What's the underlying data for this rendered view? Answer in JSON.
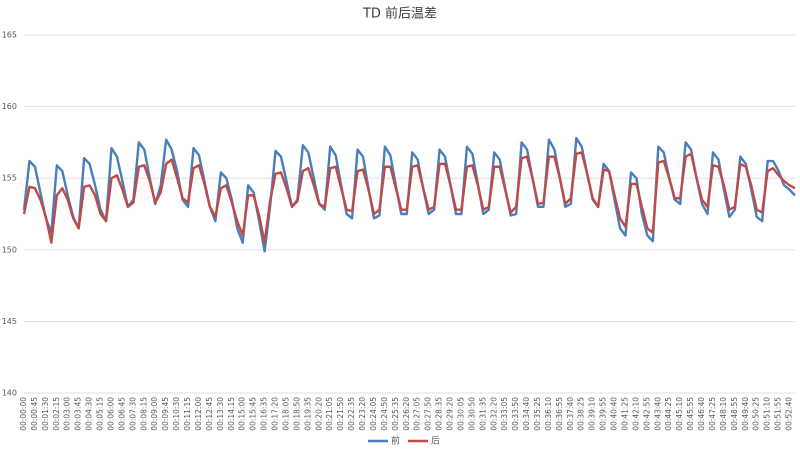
{
  "chart_data": {
    "type": "line",
    "title": "TD 前后温差",
    "categories": [
      "00:00:00",
      null,
      "00:00:45",
      null,
      "00:01:30",
      null,
      "00:02:15",
      null,
      "00:03:00",
      null,
      "00:03:45",
      null,
      "00:04:30",
      null,
      "00:05:15",
      null,
      "00:06:00",
      null,
      "00:06:45",
      null,
      "00:07:30",
      null,
      "00:08:15",
      null,
      "00:09:00",
      null,
      "00:09:45",
      null,
      "00:10:30",
      null,
      "00:11:15",
      null,
      "00:12:00",
      null,
      "00:12:45",
      null,
      "00:13:30",
      null,
      "00:14:15",
      null,
      "00:15:00",
      null,
      "00:15:45",
      null,
      "00:16:35",
      null,
      "00:17:20",
      null,
      "00:18:05",
      null,
      "00:18:50",
      null,
      "00:19:35",
      null,
      "00:20:20",
      null,
      "00:21:05",
      null,
      "00:21:50",
      null,
      "00:22:35",
      null,
      "00:23:20",
      null,
      "00:24:05",
      null,
      "00:24:50",
      null,
      "00:25:35",
      null,
      "00:26:20",
      null,
      "00:27:05",
      null,
      "00:27:50",
      null,
      "00:28:35",
      null,
      "00:29:20",
      null,
      "00:30:05",
      null,
      "00:30:50",
      null,
      "00:31:35",
      null,
      "00:32:20",
      null,
      "00:33:05",
      null,
      "00:33:50",
      null,
      "00:34:40",
      null,
      "00:35:25",
      null,
      "00:36:10",
      null,
      "00:36:55",
      null,
      "00:37:40",
      null,
      "00:38:25",
      null,
      "00:39:10",
      null,
      "00:39:55",
      null,
      "00:40:40",
      null,
      "00:41:25",
      null,
      "00:42:10",
      null,
      "00:42:55",
      null,
      "00:43:40",
      null,
      "00:44:25",
      null,
      "00:45:10",
      null,
      "00:45:55",
      null,
      "00:46:40",
      null,
      "00:47:25",
      null,
      "00:48:10",
      null,
      "00:48:55",
      null,
      "00:49:40",
      null,
      "00:50:25",
      null,
      "00:51:10",
      null,
      "00:51:55",
      null,
      "00:52:40",
      null
    ],
    "series": [
      {
        "name": "前",
        "color": "#4a7ebb",
        "values": [
          152.8,
          156.2,
          155.8,
          154,
          152.2,
          151.2,
          155.9,
          155.5,
          153.8,
          152.3,
          151.5,
          156.4,
          156,
          154.5,
          152.8,
          152,
          157.1,
          156.5,
          154.8,
          153,
          153.5,
          157.5,
          157,
          155,
          153.2,
          154.5,
          157.7,
          157,
          155.5,
          153.5,
          153,
          157.1,
          156.6,
          154.8,
          153,
          152,
          155.4,
          155,
          153.5,
          151.5,
          150.5,
          154.5,
          154,
          152,
          149.9,
          153,
          156.9,
          156.5,
          154.8,
          153,
          153.5,
          157.3,
          156.8,
          155,
          153.2,
          152.8,
          157.2,
          156.6,
          154.5,
          152.5,
          152.2,
          157,
          156.5,
          154.3,
          152.2,
          152.4,
          157.2,
          156.6,
          154.5,
          152.5,
          152.5,
          156.8,
          156.3,
          154.3,
          152.5,
          152.8,
          157,
          156.5,
          154.5,
          152.5,
          152.5,
          157.2,
          156.7,
          154.6,
          152.5,
          152.8,
          156.8,
          156.3,
          154.3,
          152.4,
          152.5,
          157.5,
          157,
          155,
          153,
          153,
          157.7,
          157,
          155,
          153,
          153.2,
          157.8,
          157.2,
          155.3,
          153.5,
          153,
          156,
          155.5,
          153.5,
          151.5,
          151,
          155.4,
          155,
          152.5,
          151,
          150.6,
          157.2,
          156.8,
          155,
          153.5,
          153.2,
          157.5,
          157,
          155,
          153.2,
          152.5,
          156.8,
          156.3,
          154.2,
          152.3,
          152.8,
          156.5,
          156,
          154.2,
          152.3,
          152,
          156.2,
          156.2,
          155.5,
          154.5,
          154.2,
          153.8
        ]
      },
      {
        "name": "后",
        "color": "#be4b48",
        "values": [
          152.5,
          154.4,
          154.3,
          153.5,
          152.3,
          150.5,
          153.8,
          154.3,
          153.5,
          152.2,
          151.5,
          154.4,
          154.5,
          153.8,
          152.5,
          152,
          155,
          155.2,
          154.2,
          153,
          153.3,
          155.8,
          155.9,
          154.8,
          153.3,
          154,
          156,
          156.3,
          155,
          153.6,
          153.3,
          155.7,
          155.9,
          154.6,
          153,
          152.3,
          154.3,
          154.5,
          153.3,
          152,
          151,
          153.8,
          153.8,
          152.4,
          150.5,
          153.4,
          155.3,
          155.4,
          154.3,
          153,
          153.4,
          155.5,
          155.7,
          154.5,
          153.2,
          153,
          155.7,
          155.8,
          154.3,
          152.8,
          152.7,
          155.5,
          155.6,
          154.2,
          152.5,
          152.8,
          155.8,
          155.8,
          154.3,
          152.8,
          152.8,
          155.8,
          155.9,
          154.3,
          152.8,
          153,
          156,
          156,
          154.5,
          152.8,
          152.8,
          155.8,
          155.9,
          154.5,
          152.8,
          153,
          155.8,
          155.8,
          154.2,
          152.6,
          153,
          156.4,
          156.5,
          155,
          153.2,
          153.3,
          156.5,
          156.5,
          155,
          153.2,
          153.6,
          156.7,
          156.8,
          155.3,
          153.6,
          153,
          155.6,
          155.5,
          153.8,
          152.2,
          151.6,
          154.6,
          154.6,
          153,
          151.5,
          151.2,
          156.1,
          156.2,
          155,
          153.6,
          153.6,
          156.5,
          156.7,
          155,
          153.5,
          153,
          155.9,
          155.8,
          154.5,
          152.8,
          153,
          156,
          155.8,
          154.5,
          152.8,
          152.6,
          155.5,
          155.7,
          155.2,
          154.8,
          154.5,
          154.3
        ]
      }
    ],
    "ylim": [
      140,
      165
    ],
    "yticks": [
      140,
      145,
      150,
      155,
      160,
      165
    ],
    "grid": true,
    "legend": "bottom"
  }
}
